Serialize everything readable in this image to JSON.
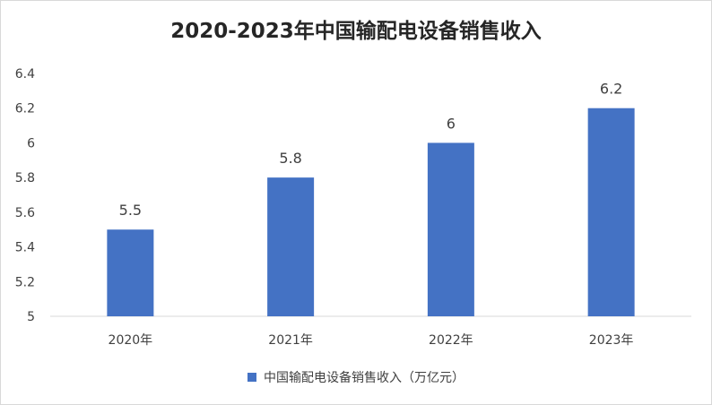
{
  "chart_data": {
    "type": "bar",
    "title": "2020-2023年中国输配电设备销售收入",
    "categories": [
      "2020年",
      "2021年",
      "2022年",
      "2023年"
    ],
    "series": [
      {
        "name": "中国输配电设备销售收入（万亿元）",
        "values": [
          5.5,
          5.8,
          6,
          6.2
        ]
      }
    ],
    "data_labels": [
      "5.5",
      "5.8",
      "6",
      "6.2"
    ],
    "y_ticks": [
      "5",
      "5.2",
      "5.4",
      "5.6",
      "5.8",
      "6",
      "6.2",
      "6.4"
    ],
    "ylim": [
      5,
      6.4
    ],
    "grid": false,
    "legend_position": "bottom",
    "bar_color": "#4472C4"
  }
}
